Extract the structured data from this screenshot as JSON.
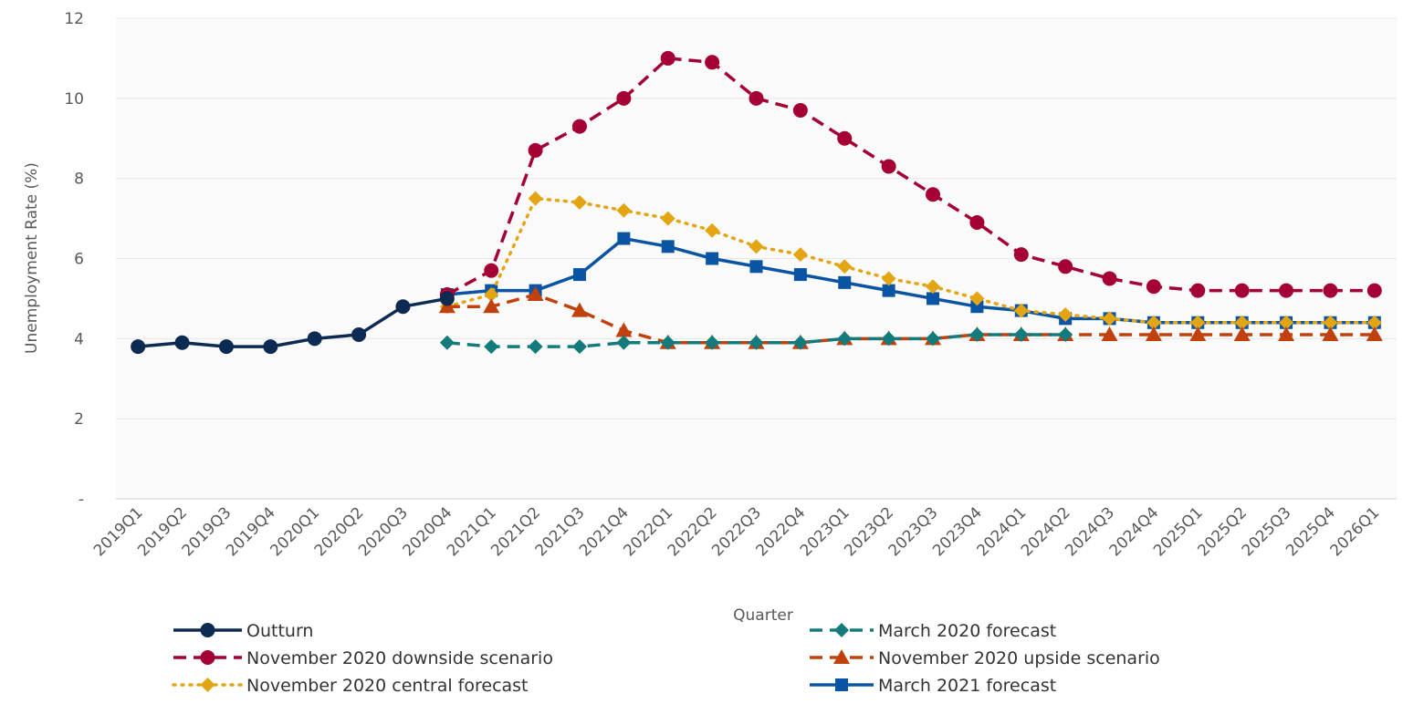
{
  "chart_data": {
    "type": "line",
    "x_label": "Quarter",
    "y_label": "Unemployment Rate (%)",
    "categories": [
      "2019Q1",
      "2019Q2",
      "2019Q3",
      "2019Q4",
      "2020Q1",
      "2020Q2",
      "2020Q3",
      "2020Q4",
      "2021Q1",
      "2021Q2",
      "2021Q3",
      "2021Q4",
      "2022Q1",
      "2022Q2",
      "2022Q3",
      "2022Q4",
      "2023Q1",
      "2023Q2",
      "2023Q3",
      "2023Q4",
      "2024Q1",
      "2024Q2",
      "2024Q3",
      "2024Q4",
      "2025Q1",
      "2025Q2",
      "2025Q3",
      "2025Q4",
      "2026Q1"
    ],
    "ylim": [
      0,
      12
    ],
    "yticks": [
      {
        "value": 0,
        "label": "-"
      },
      2,
      4,
      6,
      8,
      10,
      12
    ],
    "grid": true,
    "legend": "bottom",
    "series": [
      {
        "name": "Outturn",
        "color": "#0d2a52",
        "marker": "circle",
        "line_style": "solid",
        "values": [
          3.8,
          3.9,
          3.8,
          3.8,
          4.0,
          4.1,
          4.8,
          5.0,
          null,
          null,
          null,
          null,
          null,
          null,
          null,
          null,
          null,
          null,
          null,
          null,
          null,
          null,
          null,
          null,
          null,
          null,
          null,
          null,
          null
        ]
      },
      {
        "name": "March 2020 forecast",
        "color": "#137b7b",
        "marker": "diamond",
        "line_style": "dashed",
        "values": [
          null,
          null,
          null,
          null,
          null,
          null,
          null,
          3.9,
          3.8,
          3.8,
          3.8,
          3.9,
          3.9,
          3.9,
          3.9,
          3.9,
          4.0,
          4.0,
          4.0,
          4.1,
          4.1,
          4.1,
          null,
          null,
          null,
          null,
          null,
          null,
          null
        ]
      },
      {
        "name": "November 2020 downside scenario",
        "color": "#a50034",
        "marker": "circle",
        "line_style": "dashed",
        "values": [
          null,
          null,
          null,
          null,
          null,
          null,
          null,
          5.1,
          5.7,
          8.7,
          9.3,
          10.0,
          11.0,
          10.9,
          10.0,
          9.7,
          9.0,
          8.3,
          7.6,
          6.9,
          6.1,
          5.8,
          5.5,
          5.3,
          5.2,
          5.2,
          5.2,
          5.2,
          5.2
        ]
      },
      {
        "name": "November 2020 upside scenario",
        "color": "#c0410b",
        "marker": "triangle",
        "line_style": "dashed",
        "values": [
          null,
          null,
          null,
          null,
          null,
          null,
          null,
          4.8,
          4.8,
          5.1,
          4.7,
          4.2,
          3.9,
          3.9,
          3.9,
          3.9,
          4.0,
          4.0,
          4.0,
          4.1,
          4.1,
          4.1,
          4.1,
          4.1,
          4.1,
          4.1,
          4.1,
          4.1,
          4.1
        ]
      },
      {
        "name": "November 2020 central forecast",
        "color": "#e3a512",
        "marker": "diamond",
        "line_style": "dotted",
        "values": [
          null,
          null,
          null,
          null,
          null,
          null,
          null,
          4.8,
          5.1,
          7.5,
          7.4,
          7.2,
          7.0,
          6.7,
          6.3,
          6.1,
          5.8,
          5.5,
          5.3,
          5.0,
          4.7,
          4.6,
          4.5,
          4.4,
          4.4,
          4.4,
          4.4,
          4.4,
          4.4
        ]
      },
      {
        "name": "March 2021 forecast",
        "color": "#0a55a3",
        "marker": "square",
        "line_style": "solid",
        "values": [
          null,
          null,
          null,
          null,
          null,
          null,
          null,
          5.1,
          5.2,
          5.2,
          5.6,
          6.5,
          6.3,
          6.0,
          5.8,
          5.6,
          5.4,
          5.2,
          5.0,
          4.8,
          4.7,
          4.5,
          4.5,
          4.4,
          4.4,
          4.4,
          4.4,
          4.4,
          4.4
        ]
      }
    ]
  }
}
